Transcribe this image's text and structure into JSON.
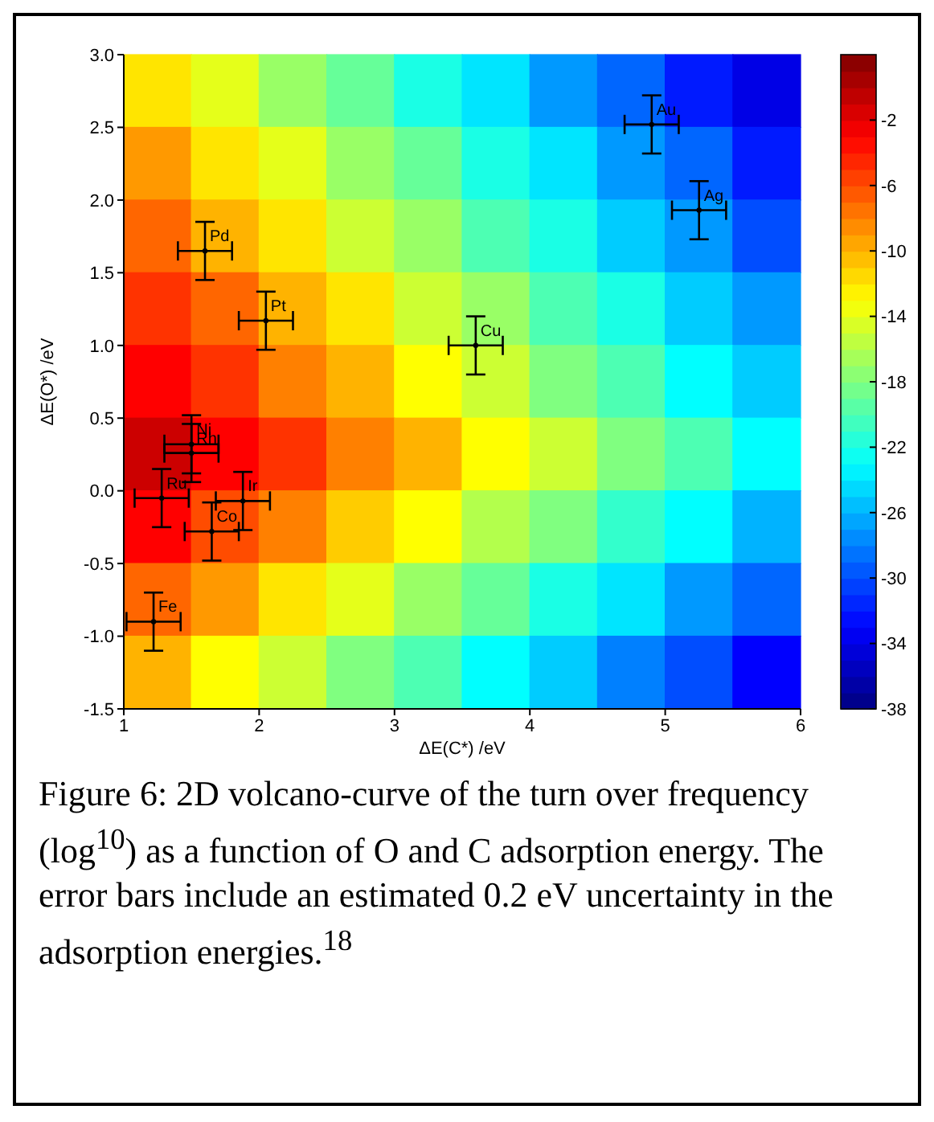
{
  "chart_data": [
    {
      "type": "heatmap",
      "categories": [
        null,
        null,
        null,
        null,
        null,
        null,
        null,
        null,
        null,
        null
      ],
      "y_categories": [
        null,
        null,
        null,
        null,
        null,
        null,
        null,
        null,
        null
      ],
      "clim": [
        -38,
        2
      ],
      "cticks": [
        -2,
        -6,
        -10,
        -14,
        -18,
        -22,
        -26,
        -30,
        -34,
        -38
      ],
      "cells": [
        [
          -12,
          -14,
          -17,
          -19,
          -22,
          -24,
          -27,
          -29,
          -32,
          -34
        ],
        [
          -9,
          -12,
          -14,
          -17,
          -19,
          -22,
          -24,
          -27,
          -29,
          -32
        ],
        [
          -7,
          -10,
          -12,
          -15,
          -17,
          -20,
          -22,
          -25,
          -27,
          -30
        ],
        [
          -5,
          -7,
          -10,
          -12,
          -15,
          -17,
          -20,
          -22,
          -25,
          -27
        ],
        [
          -3,
          -5,
          -8,
          -10,
          -13,
          -15,
          -18,
          -20,
          -23,
          -25
        ],
        [
          -1,
          -3,
          -5,
          -8,
          -10,
          -13,
          -15,
          -18,
          -20,
          -23
        ],
        [
          -3,
          -6,
          -8,
          -11,
          -13,
          -16,
          -18,
          -21,
          -23,
          -26
        ],
        [
          -7,
          -9,
          -12,
          -14,
          -17,
          -19,
          -22,
          -24,
          -27,
          -29
        ],
        [
          -10,
          -13,
          -15,
          -18,
          -20,
          -23,
          -25,
          -28,
          -30,
          -33
        ]
      ]
    },
    {
      "type": "scatter",
      "xlabel": "ΔE(C*) /eV",
      "ylabel": "ΔE(O*) /eV",
      "xlim": [
        1,
        6
      ],
      "xticks": [
        1,
        2,
        3,
        4,
        5,
        6
      ],
      "ylim": [
        -1.5,
        3
      ],
      "yticks": [
        -1.5,
        {
          "value": -1,
          "label": "-1.0"
        },
        -0.5,
        {
          "value": 0,
          "label": "0.0"
        },
        0.5,
        {
          "value": 1,
          "label": "1.0"
        },
        1.5,
        {
          "value": 2,
          "label": "2.0"
        },
        2.5,
        {
          "value": 3,
          "label": "3.0"
        }
      ],
      "series": [
        {
          "type": "scatter",
          "color": "#000000",
          "x": [
            1.6,
            2.05,
            3.6,
            4.9,
            5.25,
            1.5,
            1.5,
            1.28,
            1.88,
            1.65,
            1.22
          ],
          "values": [
            1.65,
            1.17,
            1.0,
            2.52,
            1.93,
            0.32,
            0.26,
            -0.05,
            -0.07,
            -0.28,
            -0.9
          ],
          "errors": [
            0.2,
            0.2,
            0.2,
            0.2,
            0.2,
            0.2,
            0.2,
            0.2,
            0.2,
            0.2,
            0.2
          ],
          "xerrors": [
            0.2,
            0.2,
            0.2,
            0.2,
            0.2,
            0.2,
            0.2,
            0.2,
            0.2,
            0.2,
            0.2
          ],
          "value_labels": [
            "Pd",
            "Pt",
            "Cu",
            "Au",
            "Ag",
            "Ni",
            "Rh",
            "Ru",
            "Ir",
            "Co",
            "Fe"
          ]
        }
      ],
      "annotations": [
        "Figure 6: 2D volcano-curve of the turn over frequency (log$^{10}$) as a function of O and C adsorption energy. The error bars include an estimated 0.2 eV uncertainty in the adsorption energies.$^{18}$"
      ]
    }
  ]
}
